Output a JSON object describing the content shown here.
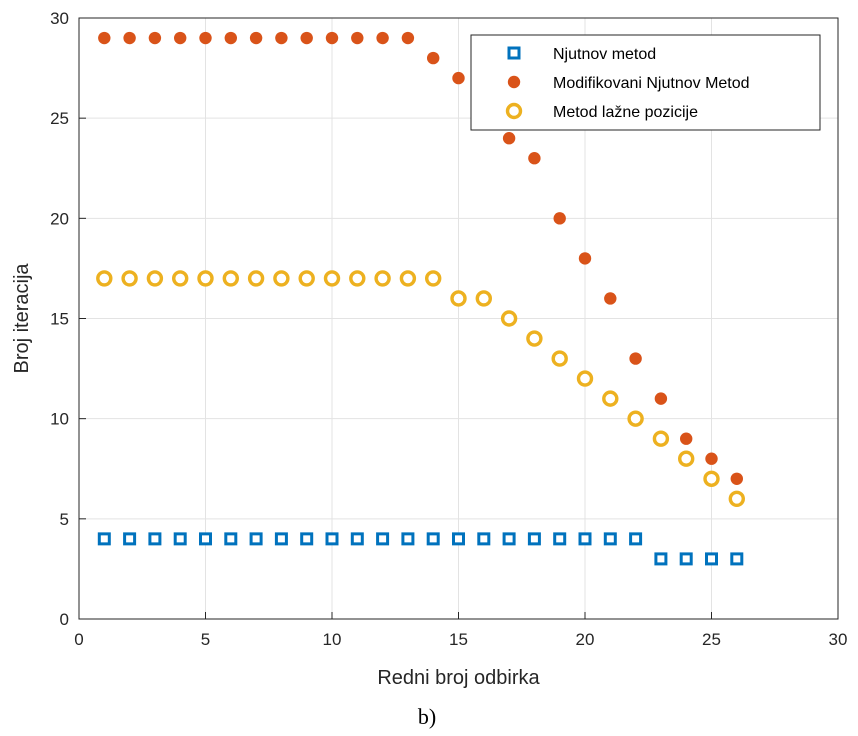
{
  "chart_data": {
    "type": "scatter",
    "xlabel": "Redni broj odbirka",
    "ylabel": "Broj iteracija",
    "xlim": [
      0,
      30
    ],
    "ylim": [
      0,
      30
    ],
    "xticks": [
      0,
      5,
      10,
      15,
      20,
      25,
      30
    ],
    "yticks": [
      0,
      5,
      10,
      15,
      20,
      25,
      30
    ],
    "grid": true,
    "legend_position": "top-right",
    "x": [
      1,
      2,
      3,
      4,
      5,
      6,
      7,
      8,
      9,
      10,
      11,
      12,
      13,
      14,
      15,
      16,
      17,
      18,
      19,
      20,
      21,
      22,
      23,
      24,
      25,
      26
    ],
    "series": [
      {
        "name": "Njutnov metod",
        "marker": "square-open",
        "color": "#0072BD",
        "values": [
          4,
          4,
          4,
          4,
          4,
          4,
          4,
          4,
          4,
          4,
          4,
          4,
          4,
          4,
          4,
          4,
          4,
          4,
          4,
          4,
          4,
          4,
          3,
          3,
          3,
          3
        ]
      },
      {
        "name": "Modifikovani Njutnov Metod",
        "marker": "circle-filled",
        "color": "#D95319",
        "values": [
          29,
          29,
          29,
          29,
          29,
          29,
          29,
          29,
          29,
          29,
          29,
          29,
          29,
          28,
          27,
          25,
          24,
          23,
          20,
          18,
          16,
          13,
          11,
          9,
          8,
          7
        ]
      },
      {
        "name": "Metod lažne pozicije",
        "marker": "circle-open",
        "color": "#EDB120",
        "values": [
          17,
          17,
          17,
          17,
          17,
          17,
          17,
          17,
          17,
          17,
          17,
          17,
          17,
          17,
          16,
          16,
          15,
          14,
          13,
          12,
          11,
          10,
          9,
          8,
          7,
          6
        ]
      }
    ]
  },
  "caption": "b)"
}
